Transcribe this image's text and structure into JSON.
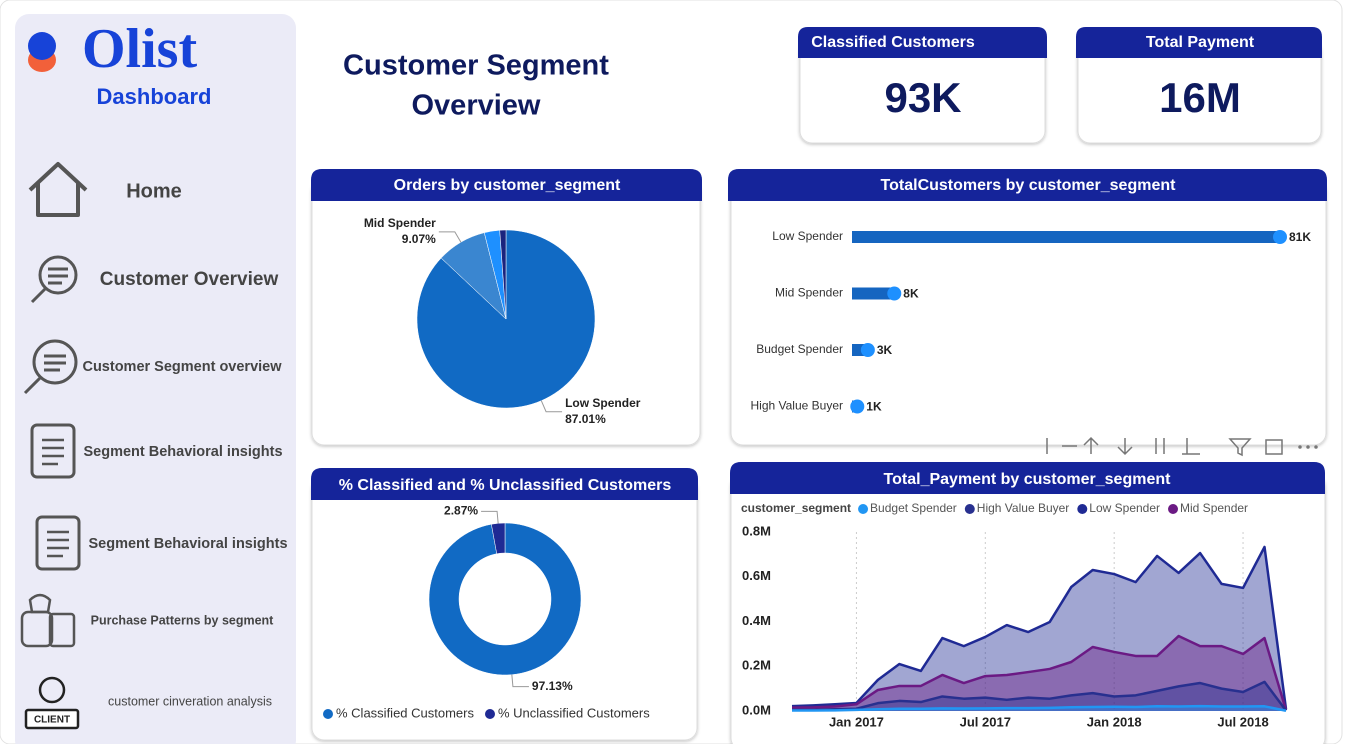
{
  "logo": {
    "brand": "Olist",
    "subtitle": "Dashboard"
  },
  "nav": [
    "Home",
    "Customer Overview",
    "Customer Segment overview",
    "Segment Behavioral insights",
    "Segment Behavioral insights",
    "Purchase Patterns by segment",
    "customer cinveration analysis"
  ],
  "title": [
    "Customer Segment",
    "Overview"
  ],
  "kpis": [
    {
      "label": "Classified Customers",
      "value": "93K"
    },
    {
      "label": "Total Payment",
      "value": "16M"
    }
  ],
  "chart_data": [
    {
      "type": "pie",
      "title": "Orders by customer_segment",
      "categories": [
        "Low Spender",
        "Mid Spender",
        null,
        null
      ],
      "values": [
        87.01,
        9.07,
        2.8,
        1.12
      ],
      "value_labels": [
        "87.01%",
        "9.07%",
        null,
        null
      ],
      "colors": [
        "#116ac4",
        "#3a86d0",
        "#1e90ff",
        "#1a237e"
      ]
    },
    {
      "type": "donut",
      "title": "% Classified and % Unclassified Customers",
      "categories": [
        "% Classified Customers",
        "% Unclassified Customers"
      ],
      "values": [
        97.13,
        2.87
      ],
      "value_labels": [
        "97.13%",
        "2.87%"
      ],
      "colors": [
        "#116ac4",
        "#1f2a94"
      ],
      "legend": "bottom"
    },
    {
      "type": "hbar",
      "title": "TotalCustomers by customer_segment",
      "categories": [
        "Low Spender",
        "Mid Spender",
        "Budget Spender",
        "High Value Buyer"
      ],
      "values": [
        81000,
        8000,
        3000,
        1000
      ],
      "value_labels": [
        "81K",
        "8K",
        "3K",
        "1K"
      ],
      "color": "#1565c0",
      "marker_color": "#1e90ff"
    },
    {
      "type": "area",
      "title": "Total_Payment by customer_segment",
      "legend_title": "customer_segment",
      "legend": "top",
      "x": [
        "2016-10",
        "2016-11",
        "2016-12",
        "2017-01",
        "2017-02",
        "2017-03",
        "2017-04",
        "2017-05",
        "2017-06",
        "2017-07",
        "2017-08",
        "2017-09",
        "2017-10",
        "2017-11",
        "2017-12",
        "2018-01",
        "2018-02",
        "2018-03",
        "2018-04",
        "2018-05",
        "2018-06",
        "2018-07",
        "2018-08",
        "2018-09"
      ],
      "xticks": [
        {
          "value": "2017-01",
          "label": "Jan 2017"
        },
        {
          "value": "2017-07",
          "label": "Jul 2017"
        },
        {
          "value": "2018-01",
          "label": "Jan 2018"
        },
        {
          "value": "2018-07",
          "label": "Jul 2018"
        }
      ],
      "xgrid": true,
      "ylim": [
        0,
        800000
      ],
      "yticks": [
        {
          "value": 0,
          "label": "0.0M"
        },
        {
          "value": 200000,
          "label": "0.2M"
        },
        {
          "value": 400000,
          "label": "0.4M"
        },
        {
          "value": 600000,
          "label": "0.6M"
        },
        {
          "value": 800000,
          "label": "0.8M"
        }
      ],
      "series": [
        {
          "name": "Budget Spender",
          "color": "#2196f3",
          "values": [
            2000,
            2000,
            3000,
            5000,
            8000,
            10000,
            10000,
            12000,
            11000,
            12000,
            13000,
            13000,
            14000,
            17000,
            18000,
            19000,
            18000,
            21000,
            20000,
            22000,
            20000,
            20000,
            21000,
            1000
          ]
        },
        {
          "name": "High Value Buyer",
          "color": "#28308f",
          "values": [
            5000,
            5000,
            8000,
            10000,
            35000,
            45000,
            40000,
            65000,
            55000,
            60000,
            50000,
            60000,
            55000,
            70000,
            80000,
            65000,
            70000,
            90000,
            110000,
            125000,
            100000,
            85000,
            130000,
            2000
          ]
        },
        {
          "name": "Low Spender",
          "color": "#1f2a94",
          "values": [
            22000,
            25000,
            30000,
            36000,
            139000,
            210000,
            179000,
            326000,
            290000,
            331000,
            384000,
            353000,
            398000,
            554000,
            630000,
            612000,
            576000,
            693000,
            617000,
            706000,
            568000,
            550000,
            733000,
            9000
          ]
        },
        {
          "name": "Mid Spender",
          "color": "#6b1a84",
          "values": [
            15000,
            16000,
            20000,
            30000,
            94000,
            112000,
            112000,
            161000,
            125000,
            156000,
            161000,
            174000,
            188000,
            219000,
            286000,
            264000,
            246000,
            246000,
            335000,
            290000,
            290000,
            255000,
            326000,
            4000
          ]
        }
      ]
    }
  ]
}
